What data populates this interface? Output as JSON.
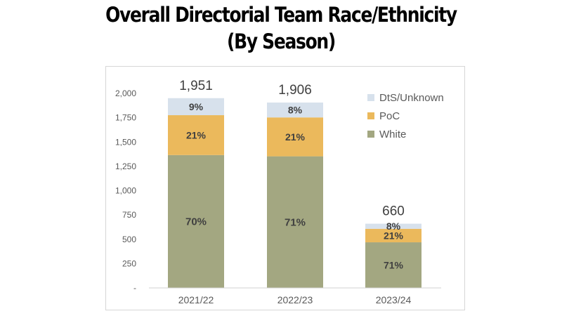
{
  "title_line1": "Overall Directorial Team Race/Ethnicity",
  "title_line2": "(By Season)",
  "chart_data": {
    "type": "bar",
    "stacked": true,
    "categories": [
      "2021/22",
      "2022/23",
      "2023/24"
    ],
    "totals": [
      1951,
      1906,
      660
    ],
    "total_labels": [
      "1,951",
      "1,906",
      "660"
    ],
    "series": [
      {
        "name": "White",
        "values": [
          1366,
          1353,
          469
        ],
        "labels": [
          "70%",
          "71%",
          "71%"
        ],
        "color": "#a3a781"
      },
      {
        "name": "PoC",
        "values": [
          410,
          400,
          139
        ],
        "labels": [
          "21%",
          "21%",
          "21%"
        ],
        "color": "#ebb95c"
      },
      {
        "name": "DtS/Unknown",
        "values": [
          175,
          153,
          52
        ],
        "labels": [
          "9%",
          "8%",
          "8%"
        ],
        "color": "#d7e1ec"
      }
    ],
    "legend_order": [
      "DtS/Unknown",
      "PoC",
      "White"
    ],
    "yticks": [
      0,
      250,
      500,
      750,
      1000,
      1250,
      1500,
      1750,
      2000
    ],
    "ytick_labels": [
      "-",
      "250",
      "500",
      "750",
      "1,000",
      "1,250",
      "1,500",
      "1,750",
      "2,000"
    ],
    "ylim": [
      0,
      2000
    ],
    "legend_position": "top-right",
    "grid": false
  }
}
